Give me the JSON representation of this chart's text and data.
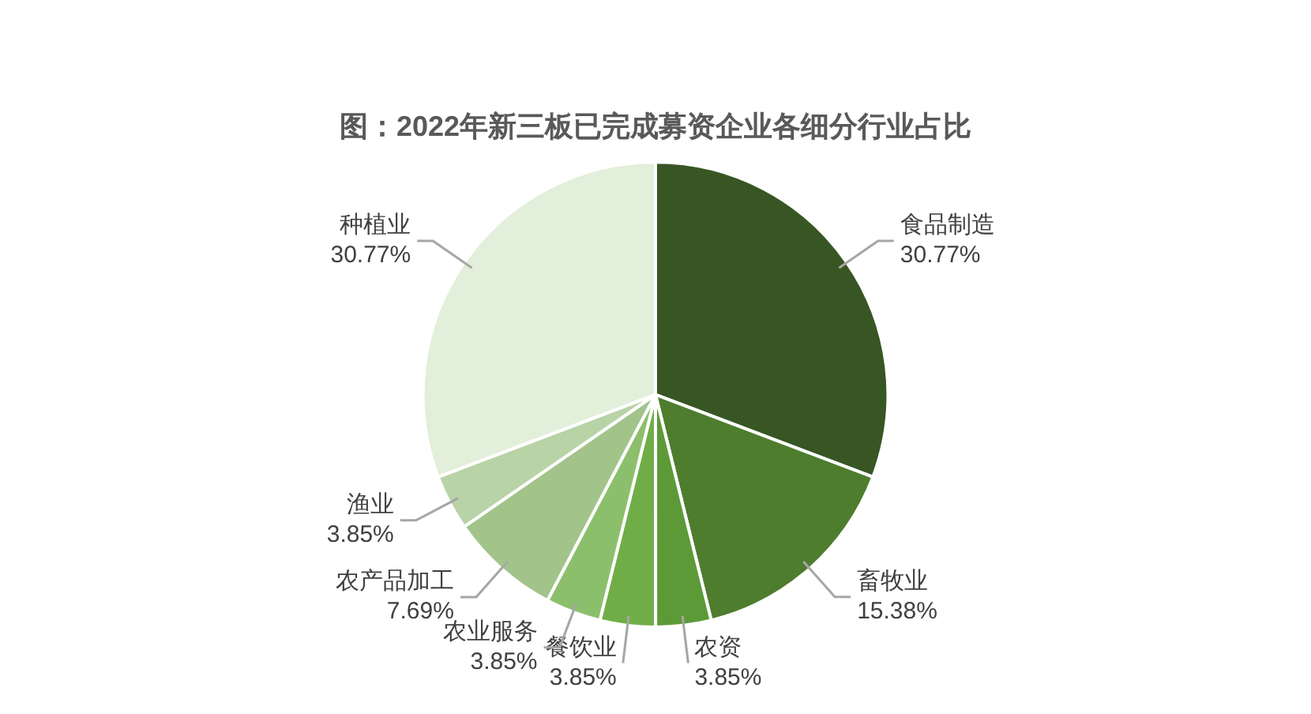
{
  "chart_data": {
    "type": "pie",
    "title": "图：2022年新三板已完成募资企业各细分行业占比",
    "categories": [
      "食品制造",
      "畜牧业",
      "农资",
      "餐饮业",
      "农业服务",
      "农产品加工",
      "渔业",
      "种植业"
    ],
    "values": [
      30.77,
      15.38,
      3.85,
      3.85,
      3.85,
      7.69,
      3.85,
      30.77
    ],
    "value_labels": [
      "30.77%",
      "15.38%",
      "3.85%",
      "3.85%",
      "3.85%",
      "7.69%",
      "3.85%",
      "30.77%"
    ],
    "colors": [
      "#375623",
      "#4e7d2e",
      "#5c9a37",
      "#70ad47",
      "#8cbf6b",
      "#a2c48b",
      "#b8d3a6",
      "#e2efda"
    ],
    "legend": false
  }
}
